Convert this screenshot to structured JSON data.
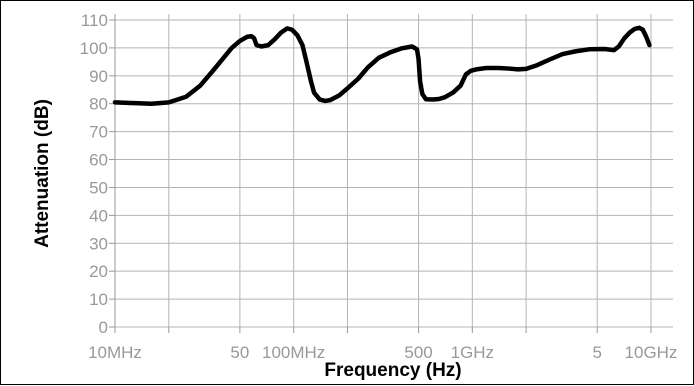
{
  "chart_data": {
    "type": "line",
    "title": "",
    "xlabel": "Frequency (Hz)",
    "ylabel": "Attenuation (dB)",
    "x_scale": "log",
    "xlim": [
      10000000,
      10000000000
    ],
    "ylim": [
      0,
      110
    ],
    "grid": true,
    "legend": "none",
    "x_ticks": [
      {
        "value": 10000000,
        "label": "10MHz"
      },
      {
        "value": 50000000,
        "label": "50"
      },
      {
        "value": 100000000,
        "label": "100MHz"
      },
      {
        "value": 500000000,
        "label": "500"
      },
      {
        "value": 1000000000,
        "label": "1GHz"
      },
      {
        "value": 5000000000,
        "label": "5"
      },
      {
        "value": 10000000000,
        "label": "10GHz"
      }
    ],
    "y_ticks": [
      0,
      10,
      20,
      30,
      40,
      50,
      60,
      70,
      80,
      90,
      100,
      110
    ],
    "x_gridlines": [
      10000000,
      20000000,
      50000000,
      100000000,
      200000000,
      500000000,
      1000000000,
      2000000000,
      5000000000,
      10000000000
    ],
    "series": [
      {
        "color": "#000000",
        "points": [
          [
            10000000,
            80.5
          ],
          [
            13000000,
            80.2
          ],
          [
            16000000,
            80.0
          ],
          [
            20000000,
            80.5
          ],
          [
            25000000,
            82.5
          ],
          [
            30000000,
            86.5
          ],
          [
            35000000,
            91.5
          ],
          [
            40000000,
            96.0
          ],
          [
            45000000,
            100.0
          ],
          [
            50000000,
            102.5
          ],
          [
            55000000,
            104.0
          ],
          [
            58000000,
            104.2
          ],
          [
            60000000,
            103.5
          ],
          [
            62000000,
            101.0
          ],
          [
            66000000,
            100.5
          ],
          [
            72000000,
            101.0
          ],
          [
            78000000,
            103.0
          ],
          [
            85000000,
            105.5
          ],
          [
            92000000,
            107.0
          ],
          [
            98000000,
            106.5
          ],
          [
            105000000,
            104.5
          ],
          [
            112000000,
            101.0
          ],
          [
            118000000,
            95.0
          ],
          [
            125000000,
            88.0
          ],
          [
            130000000,
            84.0
          ],
          [
            140000000,
            81.5
          ],
          [
            150000000,
            81.0
          ],
          [
            160000000,
            81.3
          ],
          [
            180000000,
            83.0
          ],
          [
            200000000,
            85.5
          ],
          [
            230000000,
            89.0
          ],
          [
            260000000,
            93.0
          ],
          [
            300000000,
            96.5
          ],
          [
            350000000,
            98.5
          ],
          [
            400000000,
            99.8
          ],
          [
            460000000,
            100.5
          ],
          [
            490000000,
            99.5
          ],
          [
            500000000,
            96.0
          ],
          [
            510000000,
            88.0
          ],
          [
            525000000,
            83.5
          ],
          [
            550000000,
            81.6
          ],
          [
            600000000,
            81.5
          ],
          [
            650000000,
            81.7
          ],
          [
            700000000,
            82.3
          ],
          [
            780000000,
            84.0
          ],
          [
            860000000,
            86.5
          ],
          [
            920000000,
            90.5
          ],
          [
            980000000,
            91.8
          ],
          [
            1050000000,
            92.3
          ],
          [
            1200000000,
            92.8
          ],
          [
            1400000000,
            92.8
          ],
          [
            1600000000,
            92.6
          ],
          [
            1800000000,
            92.3
          ],
          [
            2000000000,
            92.5
          ],
          [
            2300000000,
            93.8
          ],
          [
            2700000000,
            95.8
          ],
          [
            3200000000,
            97.8
          ],
          [
            3800000000,
            98.8
          ],
          [
            4500000000,
            99.5
          ],
          [
            5500000000,
            99.6
          ],
          [
            6200000000,
            99.2
          ],
          [
            6600000000,
            100.5
          ],
          [
            7100000000,
            103.5
          ],
          [
            7600000000,
            105.5
          ],
          [
            8100000000,
            106.8
          ],
          [
            8600000000,
            107.2
          ],
          [
            9000000000,
            106.5
          ],
          [
            9400000000,
            104.0
          ],
          [
            9800000000,
            101.0
          ]
        ]
      }
    ]
  }
}
